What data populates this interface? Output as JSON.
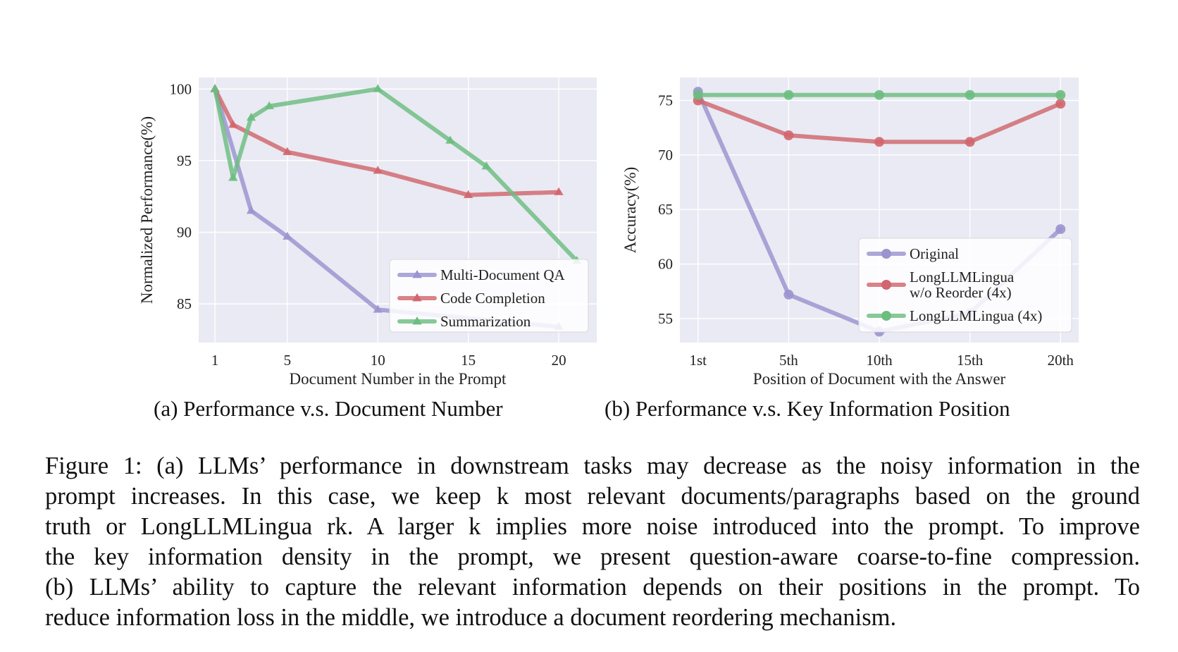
{
  "colors": {
    "panel_bg": "#e9eaf3",
    "grid": "#ffffff",
    "purple": "#9a94cf",
    "red": "#d1666d",
    "green": "#6cbd80"
  },
  "chart_data": [
    {
      "type": "line",
      "xlabel": "Document Number in the Prompt",
      "ylabel": "Normalized Performance(%)",
      "xlim": [
        0.1,
        22.1
      ],
      "ylim": [
        82.3,
        100.8
      ],
      "xticks": [
        1,
        5,
        10,
        15,
        20
      ],
      "yticks": [
        85,
        90,
        95,
        100
      ],
      "marker": "triangle",
      "grid": true,
      "legend_position": "lower-right",
      "series": [
        {
          "name": "Multi-Document QA",
          "color": "#9a94cf",
          "points": [
            [
              1,
              100
            ],
            [
              3,
              91.5
            ],
            [
              5,
              89.7
            ],
            [
              10,
              84.6
            ],
            [
              20,
              83.4
            ]
          ]
        },
        {
          "name": "Code Completion",
          "color": "#d1666d",
          "points": [
            [
              1,
              100
            ],
            [
              2,
              97.5
            ],
            [
              5,
              95.6
            ],
            [
              10,
              94.3
            ],
            [
              15,
              92.6
            ],
            [
              20,
              92.8
            ]
          ]
        },
        {
          "name": "Summarization",
          "color": "#6cbd80",
          "points": [
            [
              1,
              100
            ],
            [
              2,
              93.8
            ],
            [
              3,
              98
            ],
            [
              4,
              98.8
            ],
            [
              10,
              100
            ],
            [
              14,
              96.4
            ],
            [
              16,
              94.6
            ],
            [
              21,
              88
            ]
          ]
        }
      ]
    },
    {
      "type": "line",
      "xlabel": "Position of Document with the Answer",
      "ylabel": "Accuracy(%)",
      "categories": [
        "1st",
        "5th",
        "10th",
        "15th",
        "20th"
      ],
      "ylim": [
        52.8,
        77.1
      ],
      "yticks": [
        55,
        60,
        65,
        70,
        75
      ],
      "marker": "circle",
      "grid": true,
      "legend_position": "lower-right",
      "series": [
        {
          "name": "Original",
          "color": "#9a94cf",
          "values": [
            75.8,
            57.2,
            53.8,
            55.5,
            63.2
          ]
        },
        {
          "name": "LongLLMLingua\nw/o Reorder (4x)",
          "color": "#d1666d",
          "values": [
            75,
            71.8,
            71.2,
            71.2,
            74.7
          ]
        },
        {
          "name": "LongLLMLingua (4x)",
          "color": "#6cbd80",
          "values": [
            75.5,
            75.5,
            75.5,
            75.5,
            75.5
          ]
        }
      ]
    }
  ],
  "subcaptions": {
    "a": "(a) Performance v.s. Document Number",
    "b": "(b) Performance v.s. Key Information Position"
  },
  "caption_lines": [
    "Figure 1: (a) LLMs’ performance in downstream tasks may decrease as the noisy information in the",
    "prompt increases. In this case, we keep k most relevant documents/paragraphs based on the ground",
    "truth or LongLLMLingua rk. A larger k implies more noise introduced into the prompt. To improve",
    "the key information density in the prompt, we present question-aware coarse-to-fine compression.",
    "(b) LLMs’ ability to capture the relevant information depends on their positions in the prompt. To",
    "reduce information loss in the middle, we introduce a document reordering mechanism."
  ]
}
